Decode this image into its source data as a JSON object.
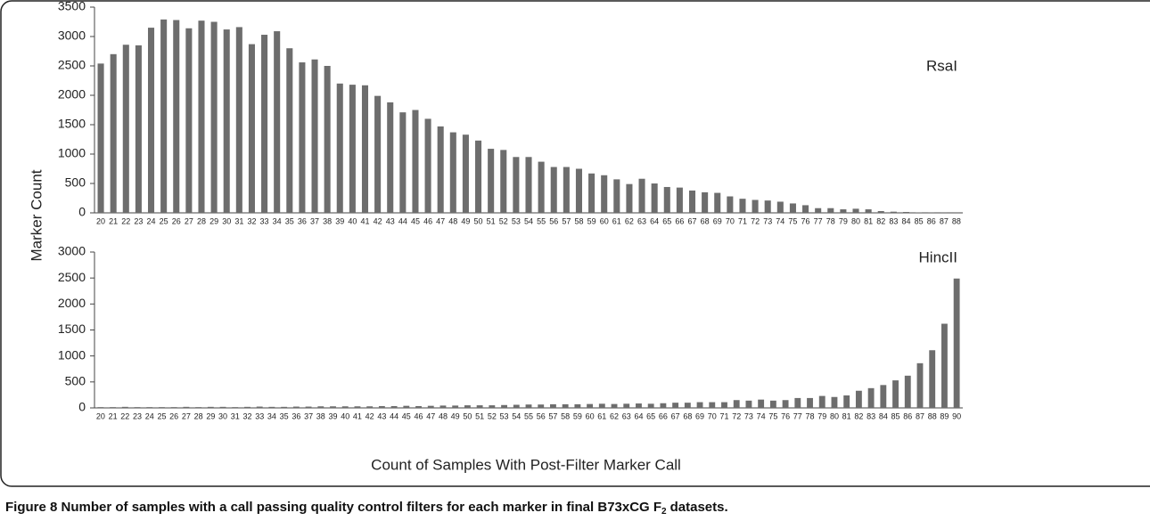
{
  "figure": {
    "y_label": "Marker Count",
    "x_label": "Count of Samples With Post-Filter Marker Call",
    "caption_label": "Figure 8",
    "caption_text": "Number of samples with a call passing quality control filters for each marker in final B73xCG F",
    "caption_sub": "2",
    "caption_end": "datasets."
  },
  "chart_data": [
    {
      "type": "bar",
      "title": "RsaI",
      "color": "#6d6d6d",
      "ylim": [
        0,
        3500
      ],
      "yticks": [
        0,
        500,
        1000,
        1500,
        2000,
        2500,
        3000,
        3500
      ],
      "categories": [
        "20",
        "21",
        "22",
        "23",
        "24",
        "25",
        "26",
        "27",
        "28",
        "29",
        "30",
        "31",
        "32",
        "33",
        "34",
        "35",
        "36",
        "37",
        "38",
        "39",
        "40",
        "41",
        "42",
        "43",
        "44",
        "45",
        "46",
        "47",
        "48",
        "49",
        "50",
        "51",
        "52",
        "53",
        "54",
        "55",
        "56",
        "57",
        "58",
        "59",
        "60",
        "61",
        "62",
        "63",
        "64",
        "65",
        "66",
        "67",
        "68",
        "69",
        "70",
        "71",
        "72",
        "73",
        "74",
        "75",
        "76",
        "77",
        "78",
        "79",
        "80",
        "81",
        "82",
        "83",
        "84",
        "85",
        "86",
        "87",
        "88"
      ],
      "values": [
        2540,
        2700,
        2860,
        2850,
        3150,
        3290,
        3280,
        3140,
        3270,
        3250,
        3120,
        3160,
        2870,
        3030,
        3090,
        2800,
        2560,
        2610,
        2500,
        2200,
        2180,
        2170,
        1990,
        1880,
        1710,
        1750,
        1600,
        1470,
        1370,
        1330,
        1230,
        1090,
        1070,
        950,
        950,
        870,
        780,
        780,
        750,
        670,
        640,
        570,
        490,
        580,
        500,
        440,
        430,
        380,
        350,
        340,
        280,
        240,
        220,
        210,
        190,
        160,
        130,
        80,
        80,
        60,
        70,
        60,
        30,
        20,
        15,
        5,
        3,
        2,
        1
      ]
    },
    {
      "type": "bar",
      "title": "HincII",
      "color": "#6d6d6d",
      "ylim": [
        0,
        3000
      ],
      "yticks": [
        0,
        500,
        1000,
        1500,
        2000,
        2500,
        3000
      ],
      "categories": [
        "20",
        "21",
        "22",
        "23",
        "24",
        "25",
        "26",
        "27",
        "28",
        "29",
        "30",
        "31",
        "32",
        "33",
        "34",
        "35",
        "36",
        "37",
        "38",
        "39",
        "40",
        "41",
        "42",
        "43",
        "44",
        "45",
        "46",
        "47",
        "48",
        "49",
        "50",
        "51",
        "52",
        "53",
        "54",
        "55",
        "56",
        "57",
        "58",
        "59",
        "60",
        "61",
        "62",
        "63",
        "64",
        "65",
        "66",
        "67",
        "68",
        "69",
        "70",
        "71",
        "72",
        "73",
        "74",
        "75",
        "76",
        "77",
        "78",
        "79",
        "80",
        "81",
        "82",
        "83",
        "84",
        "85",
        "86",
        "87",
        "88",
        "89",
        "90"
      ],
      "values": [
        15,
        15,
        20,
        15,
        15,
        15,
        15,
        20,
        15,
        20,
        20,
        15,
        20,
        25,
        20,
        20,
        25,
        25,
        30,
        30,
        30,
        30,
        30,
        35,
        35,
        40,
        35,
        40,
        45,
        45,
        50,
        50,
        50,
        55,
        60,
        65,
        65,
        70,
        70,
        70,
        75,
        80,
        75,
        80,
        85,
        80,
        90,
        100,
        100,
        110,
        110,
        110,
        150,
        140,
        160,
        140,
        150,
        190,
        190,
        230,
        210,
        240,
        330,
        380,
        440,
        530,
        620,
        860,
        1110,
        1620,
        2490
      ]
    }
  ]
}
